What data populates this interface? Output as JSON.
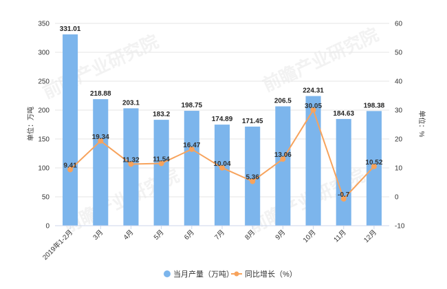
{
  "chart_data": {
    "type": "bar",
    "categories": [
      "2019年1-2月",
      "3月",
      "4月",
      "5月",
      "6月",
      "7月",
      "8月",
      "9月",
      "10月",
      "11月",
      "12月"
    ],
    "series": [
      {
        "name": "当月产量（万吨）",
        "type": "bar",
        "axis": "left",
        "values": [
          331.01,
          218.88,
          203.1,
          183.2,
          198.75,
          174.89,
          171.45,
          206.5,
          224.31,
          184.63,
          198.38
        ],
        "labels": [
          "331.01",
          "218.88",
          "203.1",
          "183.2",
          "198.75",
          "174.89",
          "171.45",
          "206.5",
          "224.31",
          "184.63",
          "198.38"
        ],
        "color": "#7cb5ec"
      },
      {
        "name": "同比增长（%）",
        "type": "line",
        "axis": "right",
        "values": [
          9.41,
          19.34,
          11.32,
          11.54,
          16.47,
          10.04,
          5.36,
          13.06,
          30.05,
          -0.7,
          10.52
        ],
        "labels": [
          "9.41",
          "19.34",
          "11.32",
          "11.54",
          "16.47",
          "10.04",
          "5.36",
          "13.06",
          "30.05",
          "-0.7",
          "10.52"
        ],
        "color": "#f7a35c"
      }
    ],
    "ylabel_left": "单位：万吨",
    "ylabel_right": "单位：%",
    "ylim_left": [
      0,
      350
    ],
    "ylim_right": [
      -10,
      60
    ],
    "yticks_left": [
      "0",
      "50",
      "100",
      "150",
      "200",
      "250",
      "300",
      "350"
    ],
    "yticks_right": [
      "-10",
      "0",
      "10",
      "20",
      "30",
      "40",
      "50",
      "60"
    ],
    "grid": true,
    "legend_position": "bottom-center"
  },
  "legend": {
    "bar_label": "当月产量（万吨）",
    "line_label": "同比增长（%）"
  },
  "watermark": {
    "text": "前瞻产业研究院"
  }
}
